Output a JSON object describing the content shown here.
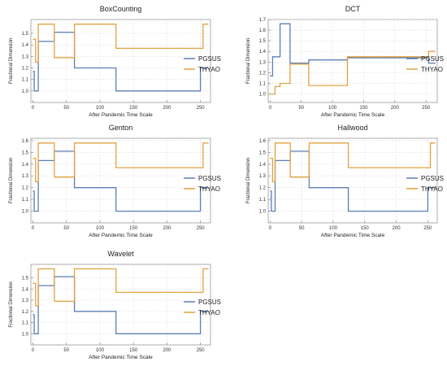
{
  "chart_data": [
    {
      "type": "line",
      "title": "BoxCounting",
      "xlabel": "After Pandemic Time Scale",
      "ylabel": "Fractional Dimension",
      "xlim": [
        -3,
        265
      ],
      "ylim": [
        0.9,
        1.62
      ],
      "xticks": [
        0,
        50,
        100,
        150,
        200,
        250
      ],
      "yticks": [
        1.0,
        1.1,
        1.2,
        1.3,
        1.4,
        1.5
      ],
      "grid": true,
      "legend_position": "right",
      "series": [
        {
          "name": "PGSUS",
          "color": "#5b7fb5",
          "x": [
            0,
            2,
            2,
            8,
            8,
            16,
            16,
            32,
            32,
            62,
            62,
            124,
            124,
            250,
            250,
            262
          ],
          "y": [
            1.17,
            1.17,
            1.0,
            1.0,
            1.43,
            1.43,
            1.43,
            1.43,
            1.51,
            1.51,
            1.2,
            1.2,
            1.0,
            1.0,
            1.2,
            1.2
          ]
        },
        {
          "name": "THYAO",
          "color": "#e0a340",
          "x": [
            0,
            4,
            4,
            8,
            8,
            16,
            16,
            32,
            32,
            62,
            62,
            124,
            124,
            254,
            254,
            262
          ],
          "y": [
            1.45,
            1.45,
            1.25,
            1.25,
            1.58,
            1.58,
            1.58,
            1.58,
            1.29,
            1.29,
            1.58,
            1.58,
            1.37,
            1.37,
            1.58,
            1.58
          ]
        }
      ]
    },
    {
      "type": "line",
      "title": "DCT",
      "xlabel": "After Pandemic Time Scale",
      "ylabel": "Fractional Dimension",
      "xlim": [
        -3,
        268
      ],
      "ylim": [
        0.92,
        1.7
      ],
      "xticks": [
        0,
        50,
        100,
        150,
        200,
        250
      ],
      "yticks": [
        1.0,
        1.1,
        1.2,
        1.3,
        1.4,
        1.5,
        1.6,
        1.7
      ],
      "grid": true,
      "legend_position": "right",
      "series": [
        {
          "name": "PGSUS",
          "color": "#5b7fb5",
          "x": [
            0,
            4,
            4,
            8,
            8,
            16,
            16,
            32,
            32,
            62,
            62,
            124,
            124,
            254,
            254,
            265
          ],
          "y": [
            1.17,
            1.17,
            1.35,
            1.35,
            1.35,
            1.35,
            1.66,
            1.66,
            1.29,
            1.29,
            1.32,
            1.32,
            1.34,
            1.34,
            1.29,
            1.29
          ]
        },
        {
          "name": "THYAO",
          "color": "#e0a340",
          "x": [
            0,
            4,
            4,
            8,
            8,
            16,
            16,
            32,
            32,
            62,
            62,
            124,
            124,
            254,
            254,
            265
          ],
          "y": [
            1.0,
            1.0,
            1.0,
            1.0,
            1.07,
            1.07,
            1.1,
            1.1,
            1.28,
            1.28,
            1.08,
            1.08,
            1.35,
            1.35,
            1.4,
            1.4
          ]
        }
      ]
    },
    {
      "type": "line",
      "title": "Genton",
      "xlabel": "After Pandemic Time Scale",
      "ylabel": "Fractional Dimension",
      "xlim": [
        -3,
        265
      ],
      "ylim": [
        0.9,
        1.62
      ],
      "xticks": [
        0,
        50,
        100,
        150,
        200,
        250
      ],
      "yticks": [
        1.0,
        1.1,
        1.2,
        1.3,
        1.4,
        1.5,
        1.6
      ],
      "grid": true,
      "legend_position": "right",
      "series": [
        {
          "name": "PGSUS",
          "color": "#5b7fb5",
          "x": [
            0,
            2,
            2,
            8,
            8,
            16,
            16,
            32,
            32,
            62,
            62,
            124,
            124,
            250,
            250,
            262
          ],
          "y": [
            1.17,
            1.17,
            1.0,
            1.0,
            1.43,
            1.43,
            1.43,
            1.43,
            1.51,
            1.51,
            1.2,
            1.2,
            1.0,
            1.0,
            1.2,
            1.2
          ]
        },
        {
          "name": "THYAO",
          "color": "#e0a340",
          "x": [
            0,
            4,
            4,
            8,
            8,
            16,
            16,
            32,
            32,
            62,
            62,
            124,
            124,
            254,
            254,
            262
          ],
          "y": [
            1.45,
            1.45,
            1.25,
            1.25,
            1.58,
            1.58,
            1.58,
            1.58,
            1.29,
            1.29,
            1.58,
            1.58,
            1.37,
            1.37,
            1.58,
            1.58
          ]
        }
      ]
    },
    {
      "type": "line",
      "title": "Hallwood",
      "xlabel": "After Pandemic Time Scale",
      "ylabel": "Fractional Dimension",
      "xlim": [
        -3,
        265
      ],
      "ylim": [
        0.9,
        1.62
      ],
      "xticks": [
        0,
        50,
        100,
        150,
        200,
        250
      ],
      "yticks": [
        1.0,
        1.1,
        1.2,
        1.3,
        1.4,
        1.5,
        1.6
      ],
      "grid": true,
      "legend_position": "right",
      "series": [
        {
          "name": "PGSUS",
          "color": "#5b7fb5",
          "x": [
            0,
            2,
            2,
            8,
            8,
            16,
            16,
            32,
            32,
            62,
            62,
            124,
            124,
            250,
            250,
            262
          ],
          "y": [
            1.17,
            1.17,
            1.0,
            1.0,
            1.43,
            1.43,
            1.43,
            1.43,
            1.51,
            1.51,
            1.2,
            1.2,
            1.0,
            1.0,
            1.2,
            1.2
          ]
        },
        {
          "name": "THYAO",
          "color": "#e0a340",
          "x": [
            0,
            4,
            4,
            8,
            8,
            16,
            16,
            32,
            32,
            62,
            62,
            124,
            124,
            254,
            254,
            262
          ],
          "y": [
            1.45,
            1.45,
            1.25,
            1.25,
            1.58,
            1.58,
            1.58,
            1.58,
            1.29,
            1.29,
            1.58,
            1.58,
            1.37,
            1.37,
            1.58,
            1.58
          ]
        }
      ]
    },
    {
      "type": "line",
      "title": "Wavelet",
      "xlabel": "After Pandemic Time Scale",
      "ylabel": "Fractional Dimension",
      "xlim": [
        -3,
        265
      ],
      "ylim": [
        0.9,
        1.62
      ],
      "xticks": [
        0,
        50,
        100,
        150,
        200,
        250
      ],
      "yticks": [
        1.0,
        1.1,
        1.2,
        1.3,
        1.4,
        1.5
      ],
      "grid": true,
      "legend_position": "right",
      "series": [
        {
          "name": "PGSUS",
          "color": "#5b7fb5",
          "x": [
            0,
            2,
            2,
            8,
            8,
            16,
            16,
            32,
            32,
            62,
            62,
            124,
            124,
            250,
            250,
            262
          ],
          "y": [
            1.17,
            1.17,
            1.0,
            1.0,
            1.43,
            1.43,
            1.43,
            1.43,
            1.51,
            1.51,
            1.2,
            1.2,
            1.0,
            1.0,
            1.2,
            1.2
          ]
        },
        {
          "name": "THYAO",
          "color": "#e0a340",
          "x": [
            0,
            4,
            4,
            8,
            8,
            16,
            16,
            32,
            32,
            62,
            62,
            124,
            124,
            254,
            254,
            262
          ],
          "y": [
            1.45,
            1.45,
            1.25,
            1.25,
            1.58,
            1.58,
            1.58,
            1.58,
            1.29,
            1.29,
            1.58,
            1.58,
            1.37,
            1.37,
            1.58,
            1.58
          ]
        }
      ]
    }
  ]
}
